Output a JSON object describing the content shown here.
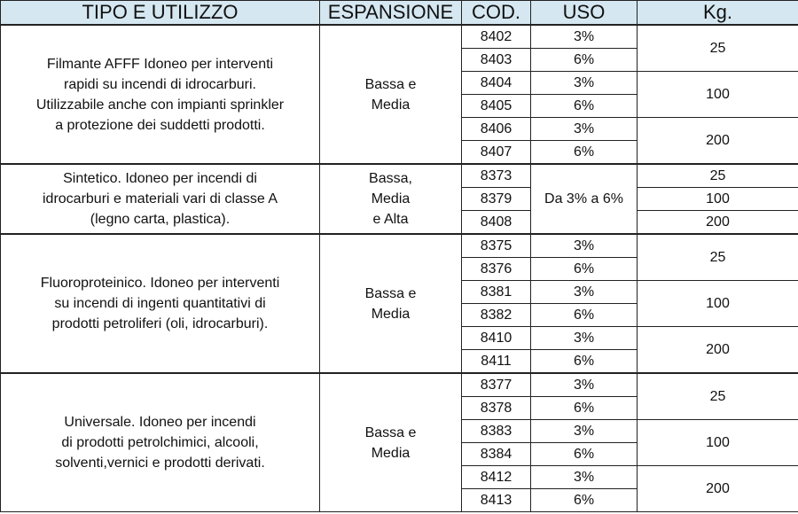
{
  "header": {
    "tipo": "TIPO E UTILIZZO",
    "espansione": "ESPANSIONE",
    "cod": "COD.",
    "uso": "USO",
    "kg": "Kg."
  },
  "groups": [
    {
      "desc": [
        "Filmante AFFF Idoneo per interventi",
        "rapidi su incendi di idrocarburi.",
        "Utilizzabile anche con impianti sprinkler",
        "a protezione dei suddetti prodotti."
      ],
      "exp": [
        "Bassa e",
        "Media"
      ],
      "codes": [
        "8402",
        "8403",
        "8404",
        "8405",
        "8406",
        "8407"
      ],
      "uso": [
        "3%",
        "6%",
        "3%",
        "6%",
        "3%",
        "6%"
      ],
      "kg": [
        "25",
        "100",
        "200"
      ]
    },
    {
      "desc": [
        "Sintetico. Idoneo per incendi di",
        "idrocarburi e materiali vari di classe A",
        "(legno carta, plastica)."
      ],
      "exp": [
        "Bassa,",
        "Media",
        "e Alta"
      ],
      "codes": [
        "8373",
        "8379",
        "8408"
      ],
      "uso": [
        "Da 3% a 6%"
      ],
      "kg": [
        "25",
        "100",
        "200"
      ]
    },
    {
      "desc": [
        "Fluoroproteinico. Idoneo per interventi",
        "su incendi di ingenti quantitativi di",
        "prodotti petroliferi (oli, idrocarburi)."
      ],
      "exp": [
        "Bassa e",
        "Media"
      ],
      "codes": [
        "8375",
        "8376",
        "8381",
        "8382",
        "8410",
        "8411"
      ],
      "uso": [
        "3%",
        "6%",
        "3%",
        "6%",
        "3%",
        "6%"
      ],
      "kg": [
        "25",
        "100",
        "200"
      ]
    },
    {
      "desc": [
        "Universale. Idoneo per incendi",
        "di prodotti petrolchimici, alcooli,",
        "solventi,vernici e prodotti derivati."
      ],
      "exp": [
        "Bassa e",
        "Media"
      ],
      "codes": [
        "8377",
        "8378",
        "8383",
        "8384",
        "8412",
        "8413"
      ],
      "uso": [
        "3%",
        "6%",
        "3%",
        "6%",
        "3%",
        "6%"
      ],
      "kg": [
        "25",
        "100",
        "200"
      ]
    }
  ]
}
